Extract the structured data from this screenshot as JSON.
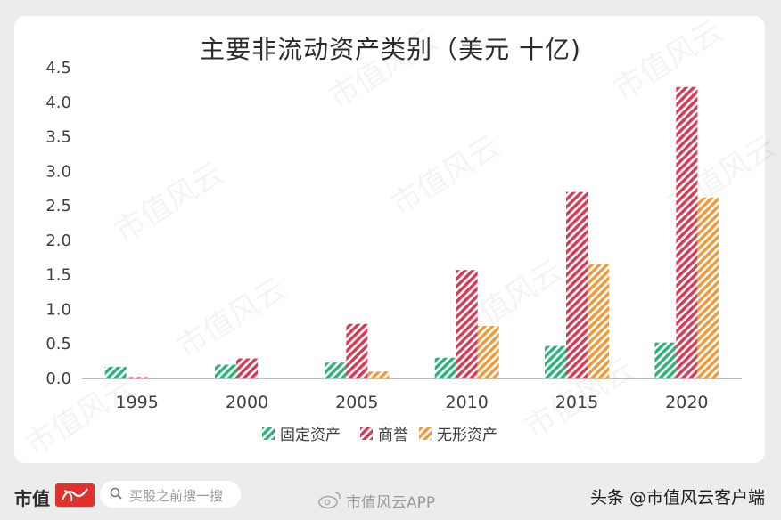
{
  "chart_data": {
    "type": "bar",
    "title": "主要非流动资产类别（美元 十亿)",
    "categories": [
      "1995",
      "2000",
      "2005",
      "2010",
      "2015",
      "2020"
    ],
    "ylim": [
      0,
      4.5
    ],
    "yticks": [
      "0.0",
      "0.5",
      "1.0",
      "1.5",
      "2.0",
      "2.5",
      "3.0",
      "3.5",
      "4.0",
      "4.5"
    ],
    "grid": false,
    "legend_position": "bottom",
    "series": [
      {
        "name": "固定资产",
        "color": "#2db37a",
        "values": [
          0.17,
          0.2,
          0.23,
          0.3,
          0.47,
          0.52
        ]
      },
      {
        "name": "商誉",
        "color": "#d63a55",
        "values": [
          0.02,
          0.29,
          0.79,
          1.57,
          2.7,
          4.22
        ]
      },
      {
        "name": "无形资产",
        "color": "#ee9a3b",
        "values": [
          0.0,
          0.0,
          0.1,
          0.76,
          1.66,
          2.62
        ]
      }
    ]
  },
  "watermark": "市值风云",
  "footer": {
    "brand": "市值",
    "search_placeholder": "买股之前搜一搜",
    "weibo_label": "市值风云APP",
    "toutiao_label": "头条 @市值风云客户端"
  }
}
